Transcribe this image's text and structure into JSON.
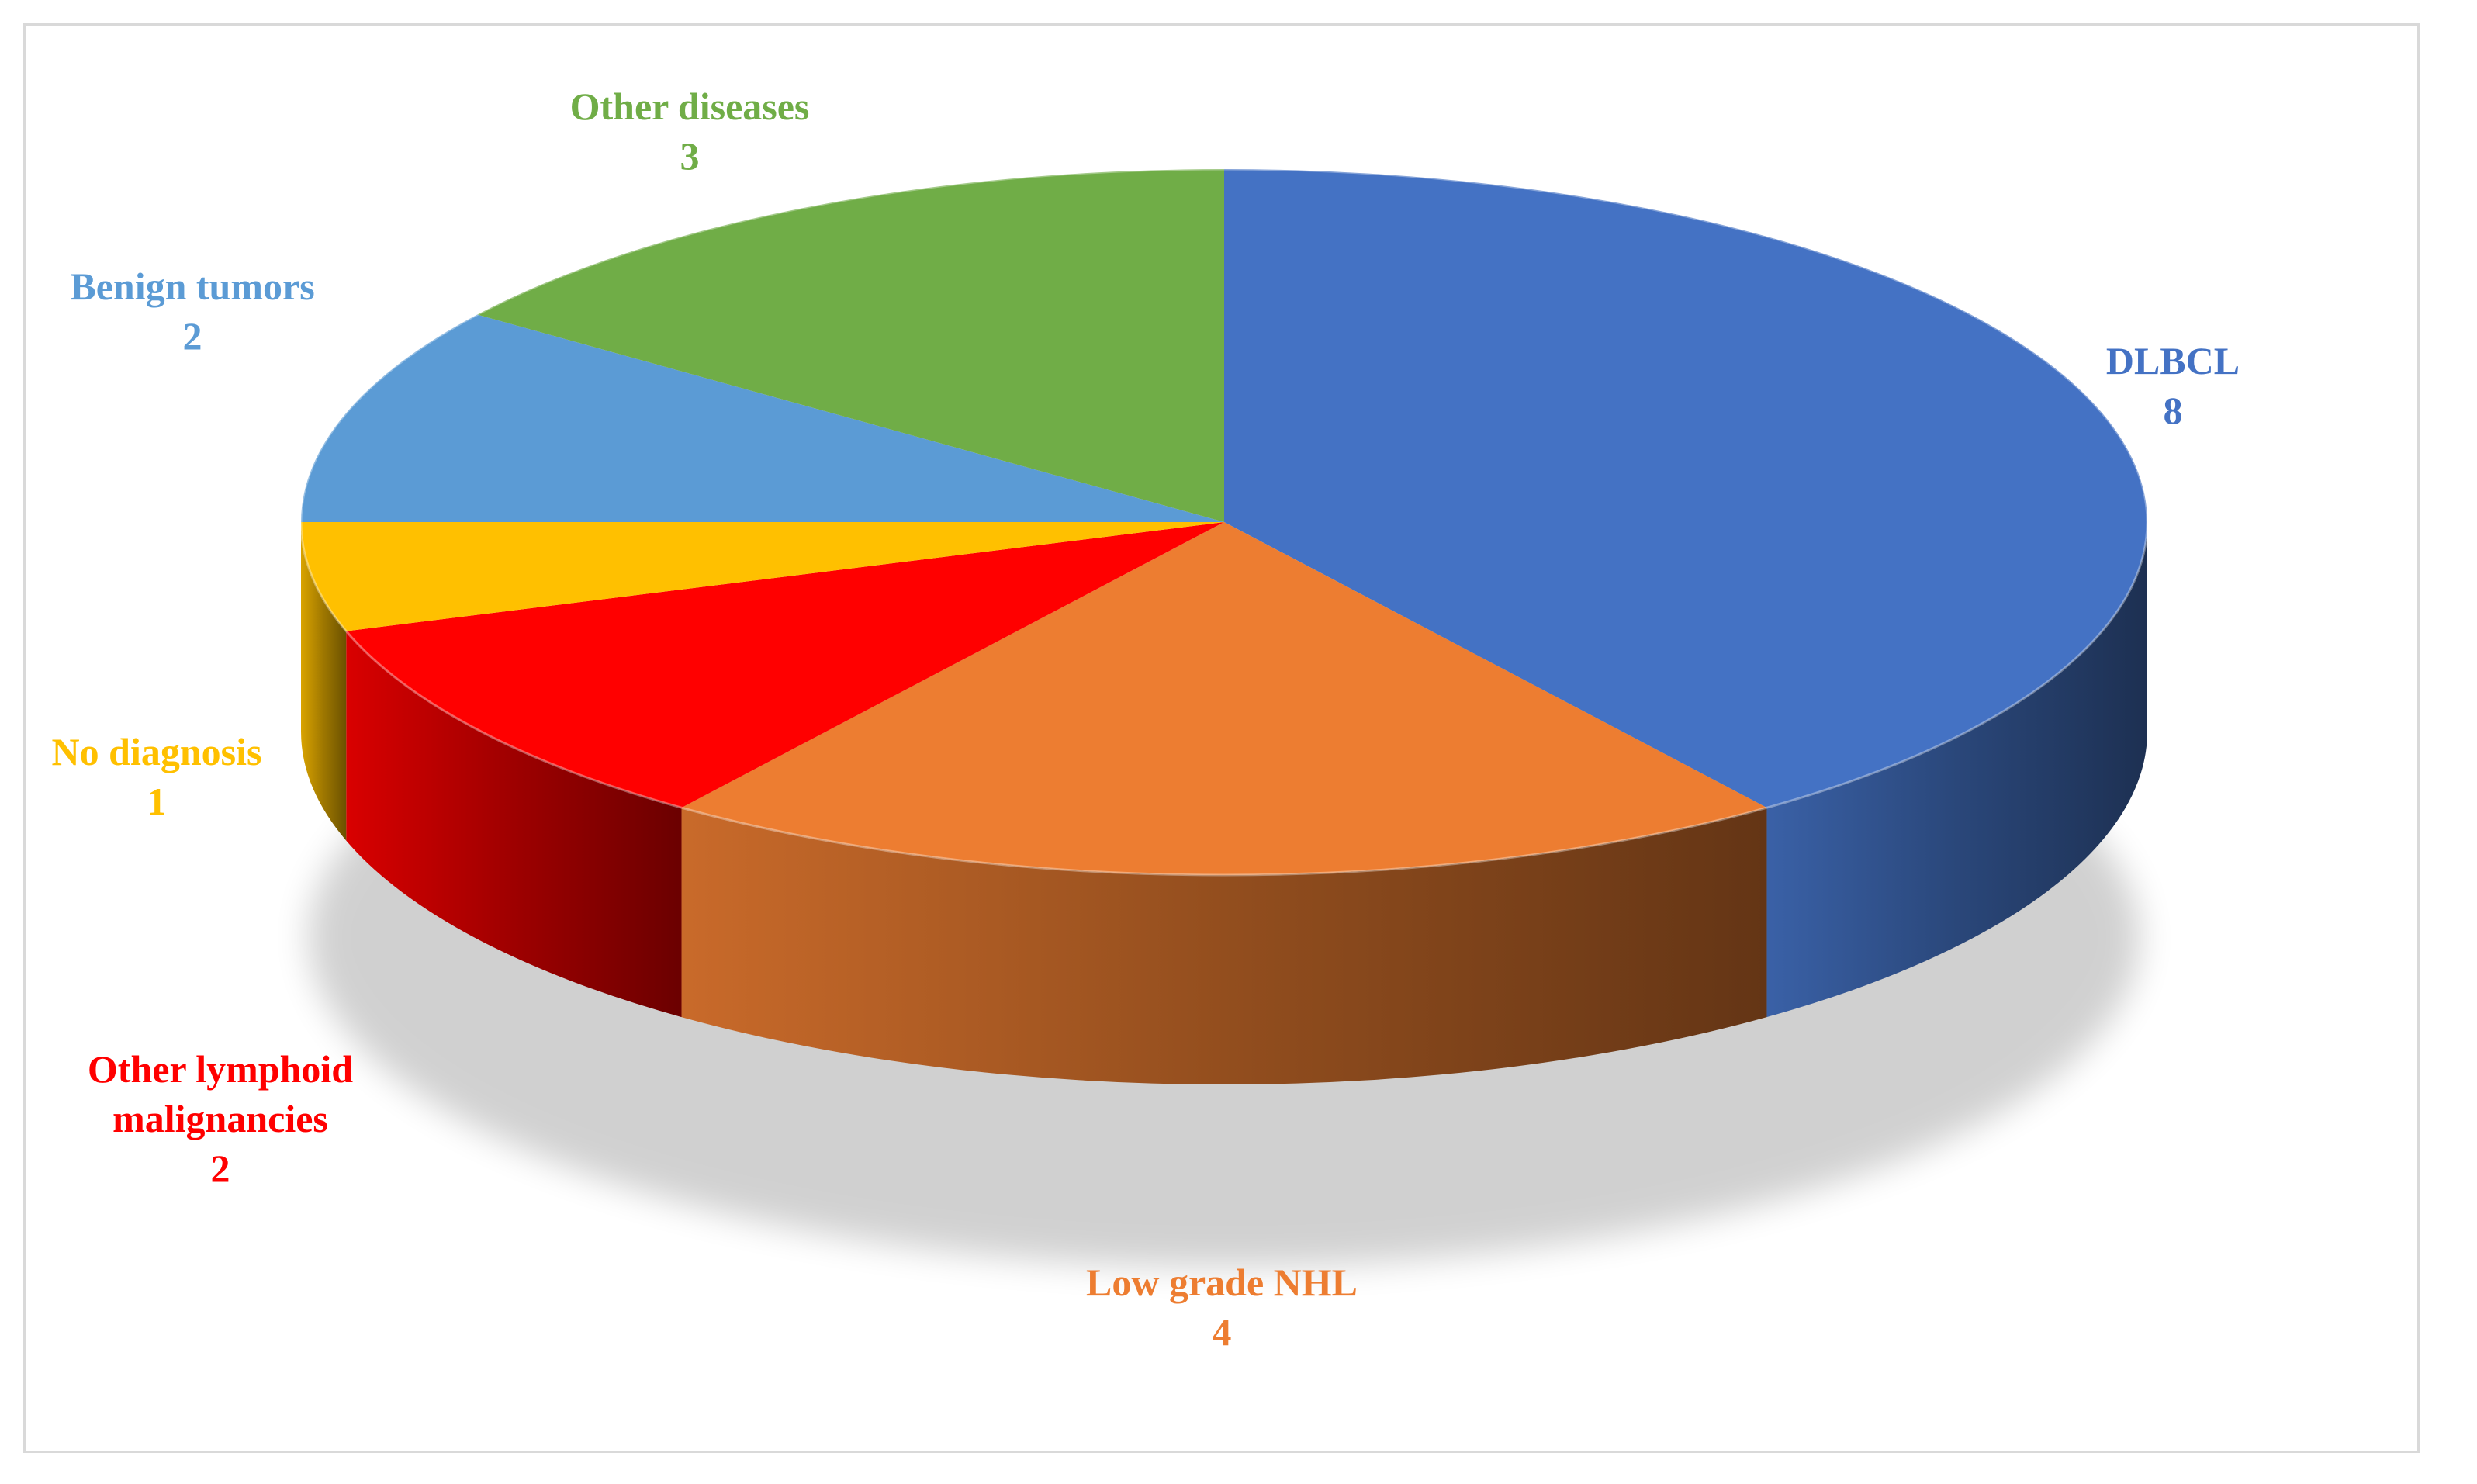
{
  "chart_data": {
    "type": "pie",
    "style": "3d",
    "slices": [
      {
        "label": "DLBCL",
        "value": 8,
        "color": "#4472C4",
        "label_position": "right"
      },
      {
        "label": "Low grade NHL",
        "value": 4,
        "color": "#ED7D31",
        "label_position": "bottom"
      },
      {
        "label": "Other lymphoid malignancies",
        "value": 2,
        "color": "#FF0000",
        "label_position": "bottom-left"
      },
      {
        "label": "No diagnosis",
        "value": 1,
        "color": "#FFC000",
        "label_position": "left"
      },
      {
        "label": "Benign tumors",
        "value": 2,
        "color": "#5B9BD5",
        "label_position": "top-left"
      },
      {
        "label": "Other diseases",
        "value": 3,
        "color": "#70AD47",
        "label_position": "top"
      }
    ],
    "legend": "none"
  },
  "labels": [
    {
      "lines": [
        "DLBCL"
      ],
      "value": "8"
    },
    {
      "lines": [
        "Low grade NHL"
      ],
      "value": "4"
    },
    {
      "lines": [
        "Other lymphoid",
        "malignancies"
      ],
      "value": "2"
    },
    {
      "lines": [
        "No diagnosis"
      ],
      "value": "1"
    },
    {
      "lines": [
        "Benign tumors"
      ],
      "value": "2"
    },
    {
      "lines": [
        "Other diseases"
      ],
      "value": "3"
    }
  ]
}
